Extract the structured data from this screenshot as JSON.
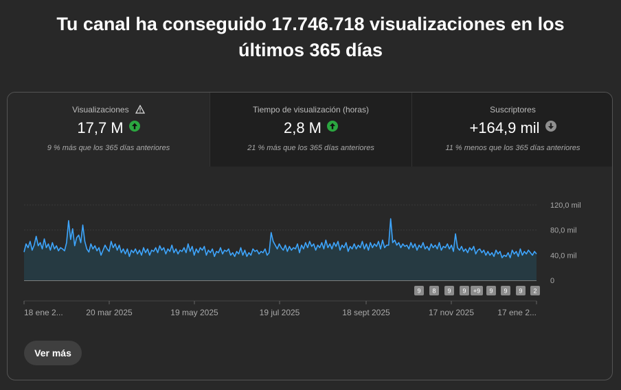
{
  "headline": {
    "line1": "Tu canal ha conseguido 17.746.718 visualizaciones en los",
    "line2": "últimos 365 días"
  },
  "metrics": [
    {
      "title": "Visualizaciones",
      "value": "17,7 M",
      "trend": "up",
      "comparison": "9 % más que los 365 días anteriores",
      "icon": "warning-icon"
    },
    {
      "title": "Tiempo de visualización (horas)",
      "value": "2,8 M",
      "trend": "up",
      "comparison": "21 % más que los 365 días anteriores"
    },
    {
      "title": "Suscriptores",
      "value": "+164,9 mil",
      "trend": "down",
      "comparison": "11 % menos que los 365 días anteriores"
    }
  ],
  "colors": {
    "line": "#3ea6ff",
    "area": "#263a42",
    "up": "#2ba640",
    "down": "#909090",
    "grid": "#3a3a3a"
  },
  "chart_data": {
    "type": "area",
    "ylim": [
      0,
      120000
    ],
    "y_ticks": [
      "0",
      "40,0 mil",
      "80,0 mil",
      "120,0 mil"
    ],
    "y_tick_values": [
      0,
      40000,
      80000,
      120000
    ],
    "x_tick_labels": [
      "18 ene 2...",
      "20 mar 2025",
      "19 may 2025",
      "19 jul 2025",
      "18 sept 2025",
      "17 nov 2025",
      "17 ene 2..."
    ],
    "grid": true,
    "markers": [
      "9",
      "8",
      "9",
      "9",
      "+9",
      "9",
      "9",
      "9",
      "2"
    ],
    "series": [
      {
        "values": [
          45000,
          58000,
          52000,
          62000,
          48000,
          56000,
          70000,
          55000,
          60000,
          50000,
          66000,
          52000,
          58000,
          48000,
          60000,
          50000,
          55000,
          47000,
          52000,
          50000,
          47000,
          60000,
          95000,
          65000,
          82000,
          55000,
          68000,
          72000,
          60000,
          88000,
          62000,
          50000,
          45000,
          58000,
          50000,
          55000,
          47000,
          52000,
          40000,
          48000,
          56000,
          50000,
          46000,
          62000,
          52000,
          58000,
          48000,
          56000,
          44000,
          50000,
          42000,
          50000,
          38000,
          48000,
          44000,
          50000,
          42000,
          48000,
          40000,
          52000,
          44000,
          50000,
          40000,
          48000,
          46000,
          52000,
          44000,
          55000,
          48000,
          52000,
          42000,
          50000,
          46000,
          56000,
          44000,
          50000,
          42000,
          48000,
          46000,
          52000,
          44000,
          58000,
          46000,
          54000,
          40000,
          50000,
          44000,
          52000,
          48000,
          54000,
          40000,
          48000,
          44000,
          50000,
          38000,
          46000,
          44000,
          52000,
          42000,
          48000,
          46000,
          50000,
          40000,
          44000,
          38000,
          46000,
          42000,
          52000,
          40000,
          48000,
          38000,
          44000,
          40000,
          50000,
          46000,
          48000,
          42000,
          46000,
          44000,
          50000,
          40000,
          44000,
          76000,
          62000,
          56000,
          50000,
          58000,
          52000,
          48000,
          56000,
          46000,
          54000,
          48000,
          52000,
          50000,
          58000,
          44000,
          56000,
          50000,
          60000,
          52000,
          62000,
          54000,
          58000,
          48000,
          56000,
          52000,
          60000,
          50000,
          64000,
          52000,
          58000,
          50000,
          60000,
          54000,
          62000,
          48000,
          56000,
          52000,
          60000,
          46000,
          54000,
          50000,
          58000,
          50000,
          56000,
          52000,
          62000,
          50000,
          58000,
          48000,
          60000,
          52000,
          58000,
          54000,
          62000,
          50000,
          64000,
          52000,
          56000,
          56000,
          98000,
          60000,
          64000,
          56000,
          60000,
          52000,
          58000,
          54000,
          56000,
          50000,
          60000,
          52000,
          58000,
          48000,
          56000,
          52000,
          60000,
          50000,
          54000,
          48000,
          58000,
          52000,
          56000,
          50000,
          60000,
          48000,
          54000,
          52000,
          58000,
          50000,
          56000,
          46000,
          74000,
          52000,
          48000,
          54000,
          46000,
          50000,
          44000,
          52000,
          48000,
          54000,
          42000,
          48000,
          50000,
          44000,
          48000,
          40000,
          46000,
          40000,
          44000,
          38000,
          48000,
          42000,
          46000,
          36000,
          40000,
          38000,
          44000,
          36000,
          48000,
          42000,
          46000,
          38000,
          50000,
          40000,
          46000,
          42000,
          48000,
          44000,
          40000,
          46000,
          42000
        ]
      }
    ]
  },
  "see_more": {
    "label": "Ver más"
  }
}
